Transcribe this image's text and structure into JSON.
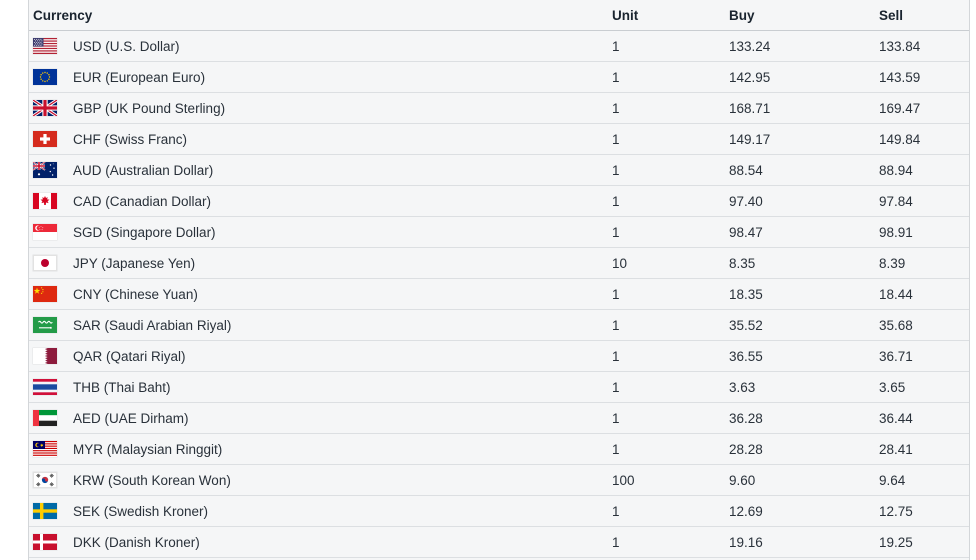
{
  "theme": {
    "page_bg": "#ffffff",
    "panel_bg": "#f5f6f7",
    "border": "#d3d6d9",
    "header_divider": "#c9cdd1",
    "row_divider": "#dcdfe2",
    "header_text": "#1a242f",
    "cell_text": "#29313a"
  },
  "table": {
    "columns": {
      "currency": "Currency",
      "unit": "Unit",
      "buy": "Buy",
      "sell": "Sell"
    },
    "rows": [
      {
        "code": "usd",
        "flag": "us",
        "label": "USD (U.S. Dollar)",
        "unit": "1",
        "buy": "133.24",
        "sell": "133.84"
      },
      {
        "code": "eur",
        "flag": "eu",
        "label": "EUR (European Euro)",
        "unit": "1",
        "buy": "142.95",
        "sell": "143.59"
      },
      {
        "code": "gbp",
        "flag": "gb",
        "label": "GBP (UK Pound Sterling)",
        "unit": "1",
        "buy": "168.71",
        "sell": "169.47"
      },
      {
        "code": "chf",
        "flag": "ch",
        "label": "CHF (Swiss Franc)",
        "unit": "1",
        "buy": "149.17",
        "sell": "149.84"
      },
      {
        "code": "aud",
        "flag": "au",
        "label": "AUD (Australian Dollar)",
        "unit": "1",
        "buy": "88.54",
        "sell": "88.94"
      },
      {
        "code": "cad",
        "flag": "ca",
        "label": "CAD (Canadian Dollar)",
        "unit": "1",
        "buy": "97.40",
        "sell": "97.84"
      },
      {
        "code": "sgd",
        "flag": "sg",
        "label": "SGD (Singapore Dollar)",
        "unit": "1",
        "buy": "98.47",
        "sell": "98.91"
      },
      {
        "code": "jpy",
        "flag": "jp",
        "label": "JPY (Japanese Yen)",
        "unit": "10",
        "buy": "8.35",
        "sell": "8.39"
      },
      {
        "code": "cny",
        "flag": "cn",
        "label": "CNY (Chinese Yuan)",
        "unit": "1",
        "buy": "18.35",
        "sell": "18.44"
      },
      {
        "code": "sar",
        "flag": "sa",
        "label": "SAR (Saudi Arabian Riyal)",
        "unit": "1",
        "buy": "35.52",
        "sell": "35.68"
      },
      {
        "code": "qar",
        "flag": "qa",
        "label": "QAR (Qatari Riyal)",
        "unit": "1",
        "buy": "36.55",
        "sell": "36.71"
      },
      {
        "code": "thb",
        "flag": "th",
        "label": "THB (Thai Baht)",
        "unit": "1",
        "buy": "3.63",
        "sell": "3.65"
      },
      {
        "code": "aed",
        "flag": "ae",
        "label": "AED (UAE Dirham)",
        "unit": "1",
        "buy": "36.28",
        "sell": "36.44"
      },
      {
        "code": "myr",
        "flag": "my",
        "label": "MYR (Malaysian Ringgit)",
        "unit": "1",
        "buy": "28.28",
        "sell": "28.41"
      },
      {
        "code": "krw",
        "flag": "kr",
        "label": "KRW (South Korean Won)",
        "unit": "100",
        "buy": "9.60",
        "sell": "9.64"
      },
      {
        "code": "sek",
        "flag": "se",
        "label": "SEK (Swedish Kroner)",
        "unit": "1",
        "buy": "12.69",
        "sell": "12.75"
      },
      {
        "code": "dkk",
        "flag": "dk",
        "label": "DKK (Danish Kroner)",
        "unit": "1",
        "buy": "19.16",
        "sell": "19.25"
      }
    ]
  }
}
